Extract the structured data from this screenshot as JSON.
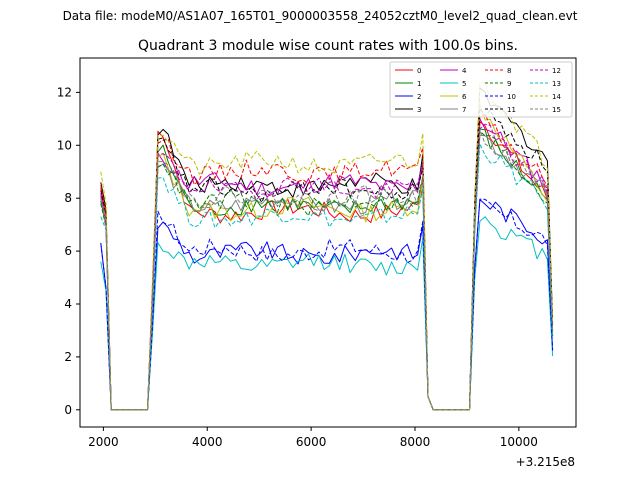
{
  "figure": {
    "suptitle": "Data file: modeM0/AS1A07_165T01_9000003558_24052cztM0_level2_quad_clean.evt",
    "title": "Quadrant 3 module wise count rates with 100.0s bins.",
    "x_offset_label": "+3.215e8"
  },
  "chart_data": {
    "type": "line",
    "title": "Quadrant 3 module wise count rates with 100.0s bins.",
    "xlabel": "",
    "ylabel": "",
    "x_offset": "+3.215e8",
    "xlim": [
      1550,
      11100
    ],
    "ylim": [
      -0.65,
      13.3
    ],
    "xticks": [
      2000,
      4000,
      6000,
      8000,
      10000
    ],
    "yticks": [
      0,
      2,
      4,
      6,
      8,
      10,
      12
    ],
    "x_tick_labels": [
      "2000",
      "4000",
      "6000",
      "8000",
      "10000"
    ],
    "y_tick_labels": [
      "0",
      "2",
      "4",
      "6",
      "8",
      "10",
      "12"
    ],
    "segments": [
      {
        "x_start": 1950,
        "x_end": 2150,
        "sampled": [
          1950,
          2050,
          2150
        ]
      },
      {
        "x_start": 2850,
        "x_end": 8150,
        "step": 100
      },
      {
        "x_start": 9150,
        "x_end": 10650,
        "step": 100
      }
    ],
    "zero_intervals": [
      [
        2150,
        2850
      ],
      [
        8250,
        9050
      ]
    ],
    "legend": {
      "location": "upper right",
      "columns": 4
    },
    "series": [
      {
        "name": "0",
        "color": "#ff0000",
        "dash": "solid",
        "seg1": [
          8.4,
          7.3
        ],
        "seg2_level": 7.5,
        "seg2_peak": 10.5,
        "seg3_level": 9.0,
        "seg3_peak": 11.0,
        "seg3_end": 8.0
      },
      {
        "name": "1",
        "color": "#008000",
        "dash": "solid",
        "seg1": [
          7.9,
          7.0
        ],
        "seg2_level": 7.7,
        "seg2_peak": 9.8,
        "seg3_level": 9.2,
        "seg3_peak": 10.5,
        "seg3_end": 8.0
      },
      {
        "name": "2",
        "color": "#0000ff",
        "dash": "solid",
        "seg1": [
          6.3,
          4.6
        ],
        "seg2_level": 5.9,
        "seg2_peak": 7.0,
        "seg3_level": 7.1,
        "seg3_peak": 8.0,
        "seg3_end": 6.5
      },
      {
        "name": "3",
        "color": "#000000",
        "dash": "solid",
        "seg1": [
          8.6,
          7.6
        ],
        "seg2_level": 8.5,
        "seg2_peak": 10.6,
        "seg3_level": 10.5,
        "seg3_peak": 12.0,
        "seg3_end": 9.5
      },
      {
        "name": "4",
        "color": "#bf00bf",
        "dash": "solid",
        "seg1": [
          8.2,
          7.1
        ],
        "seg2_level": 8.5,
        "seg2_peak": 9.5,
        "seg3_level": 9.3,
        "seg3_peak": 11.0,
        "seg3_end": 8.5
      },
      {
        "name": "5",
        "color": "#00bfbf",
        "dash": "solid",
        "seg1": [
          5.6,
          4.5
        ],
        "seg2_level": 5.5,
        "seg2_peak": 6.2,
        "seg3_level": 6.6,
        "seg3_peak": 7.3,
        "seg3_end": 5.8
      },
      {
        "name": "6",
        "color": "#bfbf00",
        "dash": "solid",
        "seg1": [
          8.0,
          7.2
        ],
        "seg2_level": 7.6,
        "seg2_peak": 9.5,
        "seg3_level": 9.3,
        "seg3_peak": 11.5,
        "seg3_end": 8.0
      },
      {
        "name": "7",
        "color": "#808080",
        "dash": "solid",
        "seg1": [
          8.0,
          7.1
        ],
        "seg2_level": 7.8,
        "seg2_peak": 9.2,
        "seg3_level": 9.2,
        "seg3_peak": 10.5,
        "seg3_end": 8.2
      },
      {
        "name": "8",
        "color": "#ff0000",
        "dash": "dashed",
        "seg1": [
          8.5,
          7.5
        ],
        "seg2_level": 9.0,
        "seg2_peak": 10.2,
        "seg3_level": 9.6,
        "seg3_peak": 11.0,
        "seg3_end": 8.6
      },
      {
        "name": "9",
        "color": "#008000",
        "dash": "dashed",
        "seg1": [
          7.8,
          6.9
        ],
        "seg2_level": 7.8,
        "seg2_peak": 9.4,
        "seg3_level": 9.2,
        "seg3_peak": 10.6,
        "seg3_end": 8.0
      },
      {
        "name": "10",
        "color": "#0000ff",
        "dash": "dashed",
        "seg1": [
          6.3,
          4.6
        ],
        "seg2_level": 6.0,
        "seg2_peak": 7.3,
        "seg3_level": 7.1,
        "seg3_peak": 7.8,
        "seg3_end": 6.4
      },
      {
        "name": "11",
        "color": "#000000",
        "dash": "dashed",
        "seg1": [
          8.3,
          7.4
        ],
        "seg2_level": 8.3,
        "seg2_peak": 10.1,
        "seg3_level": 10.0,
        "seg3_peak": 11.4,
        "seg3_end": 9.2
      },
      {
        "name": "12",
        "color": "#bf00bf",
        "dash": "dashed",
        "seg1": [
          8.1,
          7.0
        ],
        "seg2_level": 8.4,
        "seg2_peak": 9.6,
        "seg3_level": 9.4,
        "seg3_peak": 10.8,
        "seg3_end": 8.4
      },
      {
        "name": "13",
        "color": "#00bfbf",
        "dash": "dashed",
        "seg1": [
          7.3,
          6.8
        ],
        "seg2_level": 7.3,
        "seg2_peak": 8.8,
        "seg3_level": 8.9,
        "seg3_peak": 10.0,
        "seg3_end": 7.8
      },
      {
        "name": "14",
        "color": "#bfbf00",
        "dash": "dashed",
        "seg1": [
          9.0,
          7.8
        ],
        "seg2_level": 9.3,
        "seg2_peak": 10.5,
        "seg3_level": 10.4,
        "seg3_peak": 12.5,
        "seg3_end": 9.4
      },
      {
        "name": "15",
        "color": "#808080",
        "dash": "dashed",
        "seg1": [
          8.0,
          7.1
        ],
        "seg2_level": 8.0,
        "seg2_peak": 9.6,
        "seg3_level": 9.3,
        "seg3_peak": 10.5,
        "seg3_end": 8.3
      }
    ]
  }
}
